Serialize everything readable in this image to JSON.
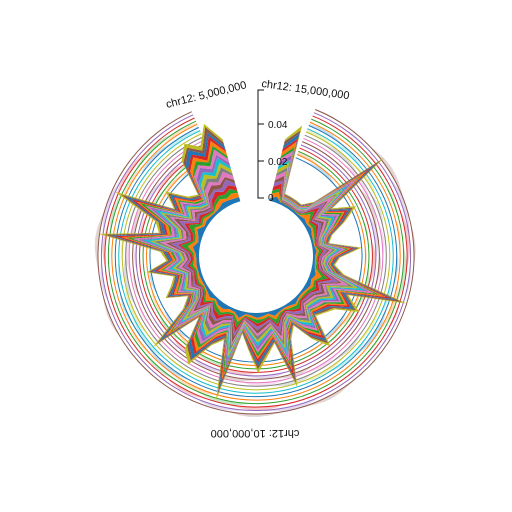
{
  "chart_data": {
    "type": "area",
    "layout": "radial",
    "title": "",
    "position_labels": [
      "chr12: 5,000,000",
      "chr12: 15,000,000",
      "chr12: 10,000,000"
    ],
    "yaxis": {
      "ticks": [
        "0",
        "0.02",
        "0.04"
      ],
      "ylim": [
        0,
        0.05
      ]
    },
    "stack_bins": 60,
    "stack_layer_count": 18,
    "stack_inner_profile": [
      0.6,
      0.75,
      0.0,
      0.0,
      0.0,
      0.0,
      0.2,
      1.0,
      0.3,
      0.5,
      0.35,
      0.2,
      0.15,
      0.45,
      0.25,
      0.2,
      0.3,
      0.95,
      0.4,
      0.55,
      0.35,
      0.3,
      0.25,
      0.55,
      0.4,
      0.2,
      0.3,
      0.75,
      0.3,
      0.4,
      0.55,
      0.35,
      0.2,
      0.85,
      0.3,
      0.4,
      0.65,
      0.55,
      0.25,
      0.75,
      0.3,
      0.2,
      0.4,
      0.3,
      0.25,
      0.5,
      0.3,
      0.35,
      0.95,
      0.4,
      0.45,
      0.9,
      0.35,
      0.5,
      0.3,
      0.25,
      0.6,
      0.7,
      0.6,
      0.8
    ],
    "ring_count": 16,
    "series_colors": [
      "#1f77b4",
      "#ff7f0e",
      "#2ca02c",
      "#d62728",
      "#9467bd",
      "#8c564b",
      "#e377c2",
      "#7f7f7f",
      "#bcbd22",
      "#17becf"
    ]
  }
}
